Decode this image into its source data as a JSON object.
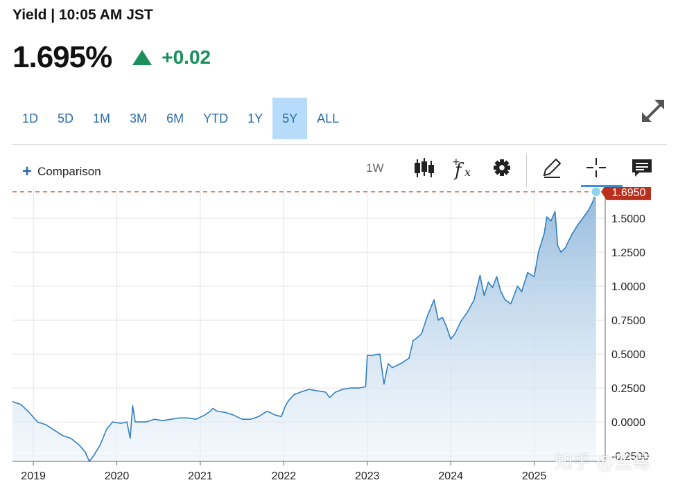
{
  "header": {
    "title": "Yield | 10:05 AM JST",
    "price": "1.695%",
    "change": "+0.02"
  },
  "ranges": [
    "1D",
    "5D",
    "1M",
    "3M",
    "6M",
    "YTD",
    "1Y",
    "5Y",
    "ALL"
  ],
  "active_range": "5Y",
  "toolbar": {
    "comparison_label": "Comparison",
    "interval": "1W"
  },
  "colors": {
    "accent": "#2b6ca8",
    "positive": "#1a8f5c",
    "line": "#2f7fbf",
    "last_price_tag": "#b9301d"
  },
  "watermark": "知乎 @蓝莓",
  "chart_data": {
    "type": "area",
    "x_ticks": [
      "2019",
      "2020",
      "2021",
      "2022",
      "2023",
      "2024",
      "2025"
    ],
    "y_ticks": [
      "1.5000",
      "1.2500",
      "1.0000",
      "0.7500",
      "0.5000",
      "0.2500",
      "0.0000",
      "-0.2500"
    ],
    "ylim": [
      -0.29,
      1.73
    ],
    "last_value_label": "1.6950",
    "last_value": 1.695,
    "series": [
      {
        "x": [
          2018.75,
          2018.85,
          2018.95,
          2019.05,
          2019.15,
          2019.25,
          2019.35,
          2019.45,
          2019.55,
          2019.62,
          2019.67,
          2019.72,
          2019.8,
          2019.88,
          2019.95,
          2020.05,
          2020.12,
          2020.16,
          2020.19,
          2020.22,
          2020.28,
          2020.35,
          2020.45,
          2020.55,
          2020.65,
          2020.75,
          2020.85,
          2020.95,
          2021.05,
          2021.12,
          2021.15,
          2021.2,
          2021.3,
          2021.4,
          2021.5,
          2021.6,
          2021.7,
          2021.8,
          2021.9,
          2021.97,
          2022.02,
          2022.06,
          2022.12,
          2022.2,
          2022.3,
          2022.4,
          2022.5,
          2022.55,
          2022.62,
          2022.7,
          2022.8,
          2022.9,
          2022.98,
          2023.0,
          2023.05,
          2023.15,
          2023.2,
          2023.25,
          2023.3,
          2023.4,
          2023.5,
          2023.55,
          2023.6,
          2023.65,
          2023.72,
          2023.8,
          2023.85,
          2023.9,
          2023.95,
          2024.0,
          2024.05,
          2024.12,
          2024.2,
          2024.28,
          2024.35,
          2024.4,
          2024.45,
          2024.5,
          2024.55,
          2024.6,
          2024.65,
          2024.72,
          2024.8,
          2024.85,
          2024.92,
          2025.0,
          2025.05,
          2025.12,
          2025.15,
          2025.2,
          2025.25,
          2025.28,
          2025.32,
          2025.37,
          2025.45,
          2025.52,
          2025.58,
          2025.65,
          2025.7,
          2025.74
        ],
        "values": [
          0.15,
          0.13,
          0.07,
          0.0,
          -0.02,
          -0.06,
          -0.1,
          -0.12,
          -0.17,
          -0.22,
          -0.29,
          -0.25,
          -0.17,
          -0.05,
          0.0,
          -0.01,
          0.0,
          -0.12,
          0.12,
          0.0,
          0.0,
          0.0,
          0.02,
          0.01,
          0.02,
          0.03,
          0.03,
          0.02,
          0.05,
          0.08,
          0.1,
          0.08,
          0.07,
          0.05,
          0.02,
          0.02,
          0.04,
          0.08,
          0.05,
          0.04,
          0.12,
          0.16,
          0.2,
          0.22,
          0.24,
          0.23,
          0.22,
          0.18,
          0.22,
          0.24,
          0.25,
          0.25,
          0.26,
          0.49,
          0.49,
          0.5,
          0.28,
          0.43,
          0.4,
          0.43,
          0.47,
          0.6,
          0.62,
          0.65,
          0.78,
          0.9,
          0.75,
          0.77,
          0.7,
          0.61,
          0.65,
          0.74,
          0.81,
          0.9,
          1.08,
          0.93,
          1.03,
          0.99,
          1.07,
          0.96,
          0.9,
          0.87,
          1.0,
          0.96,
          1.1,
          1.07,
          1.25,
          1.39,
          1.51,
          1.48,
          1.55,
          1.3,
          1.25,
          1.28,
          1.38,
          1.45,
          1.5,
          1.56,
          1.62,
          1.695
        ]
      }
    ]
  }
}
